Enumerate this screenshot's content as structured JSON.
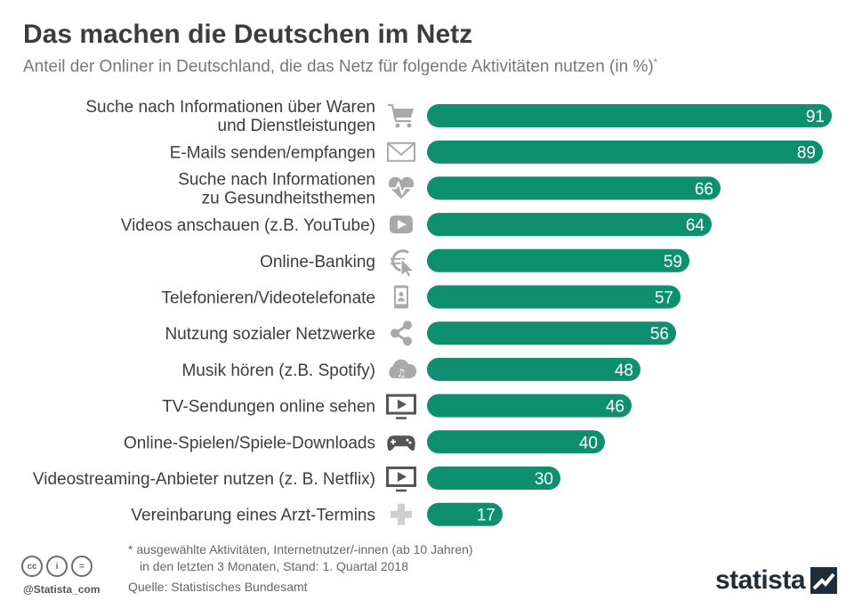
{
  "header": {
    "title": "Das machen die Deutschen im Netz",
    "subtitle": "Anteil der Onliner in Deutschland, die das Netz für folgende Aktivitäten nutzen (in %)",
    "subtitle_mark": "*"
  },
  "chart_data": {
    "type": "bar",
    "orientation": "horizontal",
    "title": "Das machen die Deutschen im Netz",
    "unit": "%",
    "xlim": [
      0,
      100
    ],
    "grid": false,
    "bar_color": "#0e8f6f",
    "label_color": "#ffffff",
    "icon_color": "#a9a9a9",
    "categories": [
      [
        "Suche nach Informationen über Waren",
        "und Dienstleistungen"
      ],
      [
        "E-Mails senden/empfangen"
      ],
      [
        "Suche nach Informationen",
        "zu Gesundheitsthemen"
      ],
      [
        "Videos anschauen (z.B. YouTube)"
      ],
      [
        "Online-Banking"
      ],
      [
        "Telefonieren/Videotelefonate"
      ],
      [
        "Nutzung sozialer Netzwerke"
      ],
      [
        "Musik hören (z.B. Spotify)"
      ],
      [
        "TV-Sendungen online sehen"
      ],
      [
        "Online-Spielen/Spiele-Downloads"
      ],
      [
        "Videostreaming-Anbieter nutzen (z. B. Netflix)"
      ],
      [
        "Vereinbarung eines Arzt-Termins"
      ]
    ],
    "values": [
      91,
      89,
      66,
      64,
      59,
      57,
      56,
      48,
      46,
      40,
      30,
      17
    ],
    "icons": [
      "shopping-cart-icon",
      "envelope-icon",
      "heartbeat-icon",
      "play-button-icon",
      "euro-cursor-icon",
      "smartphone-icon",
      "share-icon",
      "music-cloud-icon",
      "tv-play-icon",
      "gamepad-icon",
      "tv-play-icon",
      "medical-cross-icon"
    ]
  },
  "footer": {
    "note_line1": "* ausgewählte Aktivitäten, Internetnutzer/-innen (ab 10 Jahren)",
    "note_line2": "in den letzten 3 Monaten, Stand: 1. Quartal 2018",
    "source": "Quelle: Statistisches Bundesamt",
    "handle": "@Statista_com",
    "brand": "statista",
    "cc_icons": [
      "cc",
      "i",
      "="
    ]
  }
}
